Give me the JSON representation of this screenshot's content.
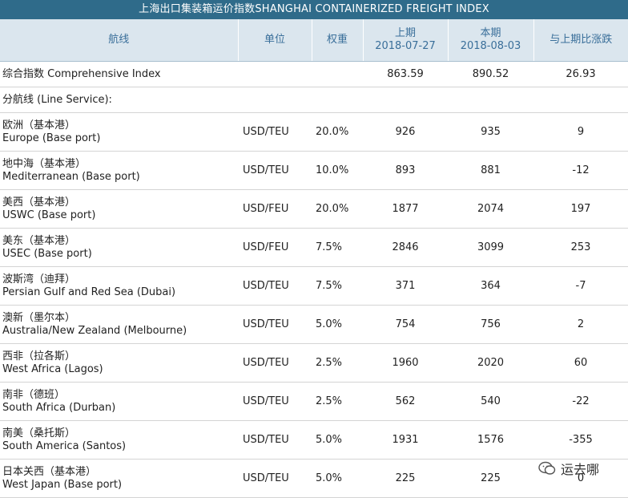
{
  "title": "上海出口集装箱运价指数SHANGHAI CONTAINERIZED FREIGHT INDEX",
  "headers": {
    "route": "航线",
    "unit": "单位",
    "weight": "权重",
    "prev_label": "上期",
    "prev_date": "2018-07-27",
    "curr_label": "本期",
    "curr_date": "2018-08-03",
    "change": "与上期比涨跌"
  },
  "comprehensive": {
    "name": "综合指数 Comprehensive Index",
    "prev": "863.59",
    "curr": "890.52",
    "change": "26.93"
  },
  "section_label": "分航线 (Line Service):",
  "rows": [
    {
      "cn": "欧洲（基本港）",
      "en": "Europe (Base port)",
      "unit": "USD/TEU",
      "weight": "20.0%",
      "prev": "926",
      "curr": "935",
      "change": "9"
    },
    {
      "cn": "地中海（基本港）",
      "en": "Mediterranean (Base port)",
      "unit": "USD/TEU",
      "weight": "10.0%",
      "prev": "893",
      "curr": "881",
      "change": "-12"
    },
    {
      "cn": "美西（基本港）",
      "en": "USWC (Base port)",
      "unit": "USD/FEU",
      "weight": "20.0%",
      "prev": "1877",
      "curr": "2074",
      "change": "197"
    },
    {
      "cn": "美东（基本港）",
      "en": "USEC (Base port)",
      "unit": "USD/FEU",
      "weight": "7.5%",
      "prev": "2846",
      "curr": "3099",
      "change": "253"
    },
    {
      "cn": "波斯湾（迪拜）",
      "en": "Persian Gulf and Red Sea (Dubai)",
      "unit": "USD/TEU",
      "weight": "7.5%",
      "prev": "371",
      "curr": "364",
      "change": "-7"
    },
    {
      "cn": "澳新（墨尔本）",
      "en": "Australia/New Zealand (Melbourne)",
      "unit": "USD/TEU",
      "weight": "5.0%",
      "prev": "754",
      "curr": "756",
      "change": "2"
    },
    {
      "cn": "西非（拉各斯）",
      "en": "West Africa (Lagos)",
      "unit": "USD/TEU",
      "weight": "2.5%",
      "prev": "1960",
      "curr": "2020",
      "change": "60"
    },
    {
      "cn": "南非（德班）",
      "en": "South Africa (Durban)",
      "unit": "USD/TEU",
      "weight": "2.5%",
      "prev": "562",
      "curr": "540",
      "change": "-22"
    },
    {
      "cn": "南美（桑托斯）",
      "en": "South America (Santos)",
      "unit": "USD/TEU",
      "weight": "5.0%",
      "prev": "1931",
      "curr": "1576",
      "change": "-355"
    },
    {
      "cn": "日本关西（基本港）",
      "en": "West Japan (Base port)",
      "unit": "USD/TEU",
      "weight": "5.0%",
      "prev": "225",
      "curr": "225",
      "change": "0"
    }
  ],
  "watermark": {
    "text": "运去哪",
    "icon": "wechat-logo-icon"
  }
}
